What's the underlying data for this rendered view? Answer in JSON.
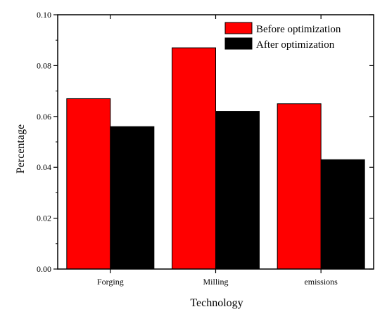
{
  "chart_data": {
    "type": "bar",
    "title": "",
    "xlabel": "Technology",
    "ylabel": "Percentage",
    "categories": [
      "Forging",
      "Milling",
      "emissions"
    ],
    "series": [
      {
        "name": "Before optimization",
        "color": "#ff0000",
        "values": [
          0.067,
          0.087,
          0.065
        ]
      },
      {
        "name": "After optimization",
        "color": "#000000",
        "values": [
          0.056,
          0.062,
          0.043
        ]
      }
    ],
    "ylim": [
      0,
      0.1
    ],
    "yticks": [
      "0.00",
      "0.02",
      "0.04",
      "0.06",
      "0.08",
      "0.10"
    ],
    "legend": "top-right",
    "grid": false
  }
}
